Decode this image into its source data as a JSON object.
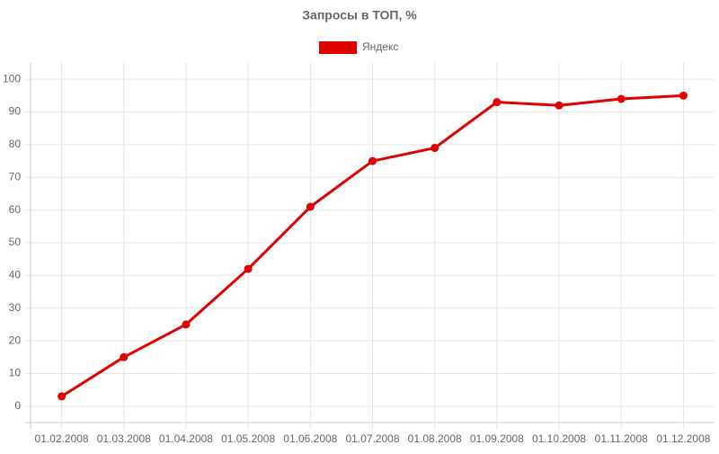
{
  "chart_data": {
    "type": "line",
    "title": "Запросы в ТОП, %",
    "categories": [
      "01.02.2008",
      "01.03.2008",
      "01.04.2008",
      "01.05.2008",
      "01.06.2008",
      "01.07.2008",
      "01.08.2008",
      "01.09.2008",
      "01.10.2008",
      "01.11.2008",
      "01.12.2008"
    ],
    "series": [
      {
        "name": "Яндекс",
        "color": "#e00000",
        "values": [
          3,
          15,
          25,
          42,
          61,
          75,
          79,
          93,
          92,
          94,
          95
        ]
      }
    ],
    "ylim": [
      -5,
      105
    ],
    "yticks": [
      0,
      10,
      20,
      30,
      40,
      50,
      60,
      70,
      80,
      90,
      100
    ],
    "grid": true,
    "legend": "top"
  }
}
